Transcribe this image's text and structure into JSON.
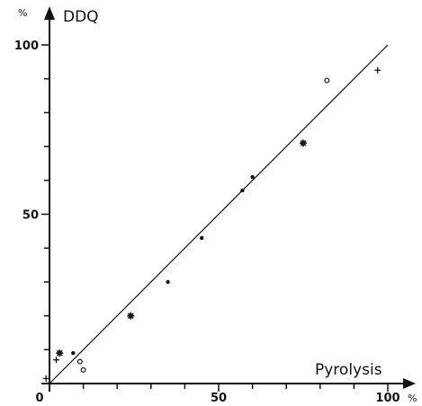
{
  "chart_data": {
    "type": "scatter",
    "title": "",
    "xlabel": "Pyrolysis",
    "ylabel": "DDQ",
    "x_unit": "%",
    "y_unit": "%",
    "xlim": [
      0,
      100
    ],
    "ylim": [
      0,
      100
    ],
    "x_ticks": [
      {
        "value": 0,
        "label": "0"
      },
      {
        "value": 50,
        "label": "50"
      },
      {
        "value": 100,
        "label": "100"
      }
    ],
    "y_ticks": [
      {
        "value": 50,
        "label": "50"
      },
      {
        "value": 100,
        "label": "100"
      }
    ],
    "x_minor_ticks": [
      10,
      20,
      30,
      40,
      60,
      70,
      80,
      90
    ],
    "y_minor_ticks": [
      10,
      20,
      30,
      40,
      60,
      70,
      80,
      90
    ],
    "grid": false,
    "reference_line": {
      "x": [
        0,
        100
      ],
      "y": [
        0,
        100
      ]
    },
    "points": [
      {
        "x": -1,
        "y": 1.5,
        "marker": "plus"
      },
      {
        "x": 2,
        "y": 7,
        "marker": "plus"
      },
      {
        "x": 3,
        "y": 9,
        "marker": "star"
      },
      {
        "x": 7,
        "y": 9,
        "marker": "dot"
      },
      {
        "x": 9,
        "y": 6.5,
        "marker": "circle"
      },
      {
        "x": 10,
        "y": 4,
        "marker": "circle"
      },
      {
        "x": 24,
        "y": 20,
        "marker": "star"
      },
      {
        "x": 35,
        "y": 30,
        "marker": "dot"
      },
      {
        "x": 45,
        "y": 43,
        "marker": "dot"
      },
      {
        "x": 57,
        "y": 57,
        "marker": "dot"
      },
      {
        "x": 60,
        "y": 61,
        "marker": "dot"
      },
      {
        "x": 75,
        "y": 71,
        "marker": "star"
      },
      {
        "x": 82,
        "y": 89.5,
        "marker": "circle"
      },
      {
        "x": 97,
        "y": 92.5,
        "marker": "plus"
      }
    ]
  }
}
